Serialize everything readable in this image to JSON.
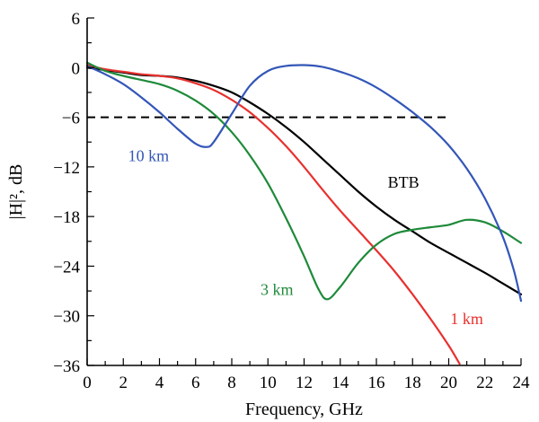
{
  "chart_data": {
    "type": "line",
    "xlabel": "Frequency, GHz",
    "ylabel": "|H|², dB",
    "xlim": [
      0,
      24
    ],
    "ylim": [
      -36,
      6
    ],
    "xticks": [
      0,
      2,
      4,
      6,
      8,
      10,
      12,
      14,
      16,
      18,
      20,
      22,
      24
    ],
    "yticks": [
      6,
      0,
      -6,
      -12,
      -18,
      -24,
      -30,
      -36
    ],
    "ytick_labels": [
      "6",
      "0",
      "−6",
      "−12",
      "−18",
      "−24",
      "−30",
      "−36"
    ],
    "grid": false,
    "reference_line": {
      "y": -6,
      "x_range": [
        0,
        20
      ],
      "style": "dashed",
      "color": "#000000"
    },
    "series": [
      {
        "name": "BTB",
        "color": "#000000",
        "x": [
          0,
          1,
          2,
          3,
          4,
          5,
          6,
          7,
          8,
          9,
          10,
          11,
          12,
          13,
          14,
          15,
          16,
          17,
          18,
          19,
          20,
          21,
          22,
          23,
          24
        ],
        "y": [
          0,
          -0.3,
          -0.6,
          -0.9,
          -1.0,
          -1.2,
          -1.6,
          -2.2,
          -3.0,
          -4.2,
          -5.6,
          -7.2,
          -9.0,
          -11.0,
          -13.0,
          -15.0,
          -16.8,
          -18.4,
          -19.8,
          -21.2,
          -22.4,
          -23.6,
          -24.8,
          -26.1,
          -27.4
        ],
        "label_text": "BTB",
        "label_at": [
          17.5,
          -14.5
        ]
      },
      {
        "name": "1 km",
        "color": "#e8312f",
        "x": [
          0,
          1,
          2,
          3,
          4,
          5,
          6,
          7,
          8,
          9,
          10,
          11,
          12,
          13,
          14,
          15,
          16,
          17,
          18,
          19,
          20,
          20.6
        ],
        "y": [
          0.3,
          -0.2,
          -0.5,
          -0.8,
          -1.0,
          -1.3,
          -1.9,
          -2.7,
          -3.9,
          -5.4,
          -7.3,
          -9.5,
          -12.0,
          -14.7,
          -17.3,
          -19.7,
          -22.1,
          -24.6,
          -27.4,
          -30.4,
          -33.6,
          -35.8
        ],
        "label_text": "1 km",
        "label_at": [
          21.0,
          -31.0
        ]
      },
      {
        "name": "3 km",
        "color": "#1e8a3a",
        "x": [
          0,
          1,
          2,
          3,
          4,
          5,
          6,
          7,
          8,
          9,
          10,
          11,
          12,
          12.8,
          13.3,
          14,
          15,
          16,
          17,
          18,
          19,
          20,
          21,
          22,
          23,
          24
        ],
        "y": [
          0.6,
          -0.4,
          -1.0,
          -1.5,
          -2.0,
          -2.8,
          -4.0,
          -5.6,
          -7.8,
          -10.6,
          -14.0,
          -18.2,
          -22.8,
          -26.8,
          -28.0,
          -26.5,
          -23.6,
          -21.4,
          -20.1,
          -19.6,
          -19.3,
          -19.0,
          -18.4,
          -18.7,
          -19.8,
          -21.2
        ],
        "label_text": "3 km",
        "label_at": [
          10.5,
          -27.5
        ]
      },
      {
        "name": "10 km",
        "color": "#3356b8",
        "x": [
          0,
          1,
          2,
          3,
          4,
          5,
          6,
          6.6,
          7,
          8,
          9,
          10,
          11,
          12,
          13,
          14,
          15,
          16,
          17,
          18,
          19,
          20,
          21,
          22,
          23,
          23.6,
          24
        ],
        "y": [
          0.2,
          -0.8,
          -2.0,
          -3.6,
          -5.4,
          -7.4,
          -9.2,
          -9.6,
          -9.0,
          -5.6,
          -2.2,
          -0.4,
          0.2,
          0.3,
          0.1,
          -0.5,
          -1.3,
          -2.4,
          -3.8,
          -5.4,
          -7.2,
          -9.4,
          -12.2,
          -15.8,
          -20.5,
          -24.5,
          -28.2
        ],
        "label_text": "10 km",
        "label_at": [
          3.4,
          -11.3
        ]
      }
    ]
  }
}
